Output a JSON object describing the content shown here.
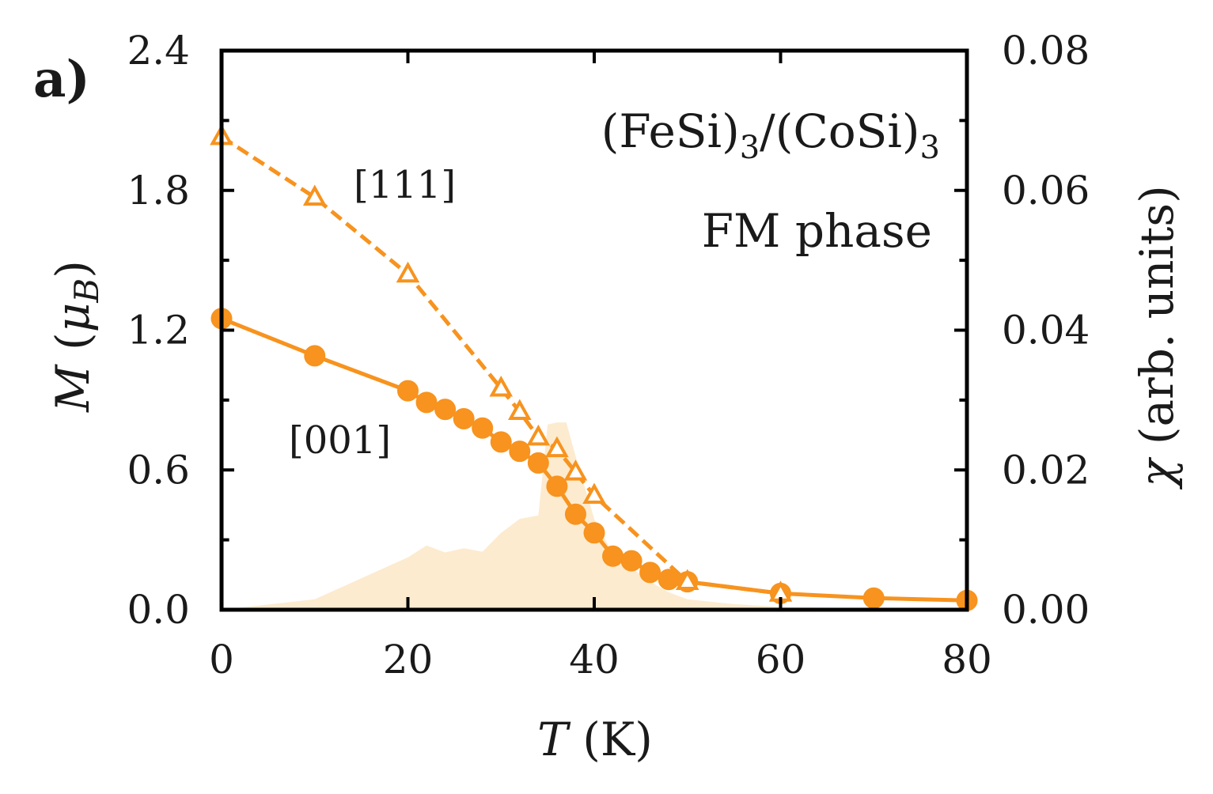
{
  "chart_data": {
    "type": "line",
    "panel_label": "a)",
    "title": "",
    "annotations": {
      "system_prefix": "(FeSi)",
      "system_sub1": "3",
      "system_mid": "/(CoSi)",
      "system_sub2": "3",
      "phase": "FM phase"
    },
    "xlabel_var": "T",
    "xlabel_unit": " (K)",
    "ylabel_var": "M",
    "ylabel_open": " (",
    "ylabel_mu": "μ",
    "ylabel_sub": "B",
    "ylabel_close": ")",
    "y2label_var": "χ",
    "y2label_unit": " (arb. units)",
    "xlim": [
      0,
      80
    ],
    "ylim": [
      0,
      2.4
    ],
    "y2lim": [
      0,
      0.08
    ],
    "xticks": [
      "0",
      "20",
      "40",
      "60",
      "80"
    ],
    "yticks": [
      "0.0",
      "0.6",
      "1.2",
      "1.8",
      "2.4"
    ],
    "y2ticks": [
      "0.00",
      "0.02",
      "0.04",
      "0.06",
      "0.08"
    ],
    "series": [
      {
        "name": "[111]",
        "marker": "open-triangle",
        "line": "dashed",
        "x": [
          0,
          10,
          20,
          30,
          32,
          34,
          36,
          38,
          40,
          50,
          60
        ],
        "y": [
          2.03,
          1.77,
          1.44,
          0.95,
          0.85,
          0.74,
          0.69,
          0.59,
          0.49,
          0.12,
          0.07
        ]
      },
      {
        "name": "[001]",
        "marker": "filled-circle",
        "line": "solid",
        "x": [
          0,
          10,
          20,
          22,
          24,
          26,
          28,
          30,
          32,
          34,
          36,
          38,
          40,
          42,
          44,
          46,
          48,
          50,
          60,
          70,
          80
        ],
        "y": [
          1.25,
          1.09,
          0.94,
          0.89,
          0.86,
          0.82,
          0.78,
          0.72,
          0.68,
          0.63,
          0.53,
          0.41,
          0.33,
          0.23,
          0.21,
          0.16,
          0.13,
          0.12,
          0.07,
          0.05,
          0.04
        ]
      }
    ],
    "susceptibility": {
      "name": "χ",
      "axis": "right",
      "x": [
        0,
        10,
        20,
        22,
        24,
        26,
        28,
        30,
        32,
        34,
        35,
        36,
        37,
        38,
        40,
        42,
        44,
        46,
        48,
        50,
        55,
        60,
        70,
        80
      ],
      "y": [
        0.0,
        0.0015,
        0.0075,
        0.0092,
        0.0082,
        0.0088,
        0.0083,
        0.011,
        0.013,
        0.0135,
        0.0265,
        0.0268,
        0.0268,
        0.022,
        0.013,
        0.008,
        0.006,
        0.004,
        0.0025,
        0.0015,
        0.0008,
        0.0004,
        0.0002,
        0.0001
      ]
    },
    "colors": {
      "series": "#f7931e",
      "susceptibility_fill": "#fdebd0",
      "axis": "#000000"
    }
  }
}
